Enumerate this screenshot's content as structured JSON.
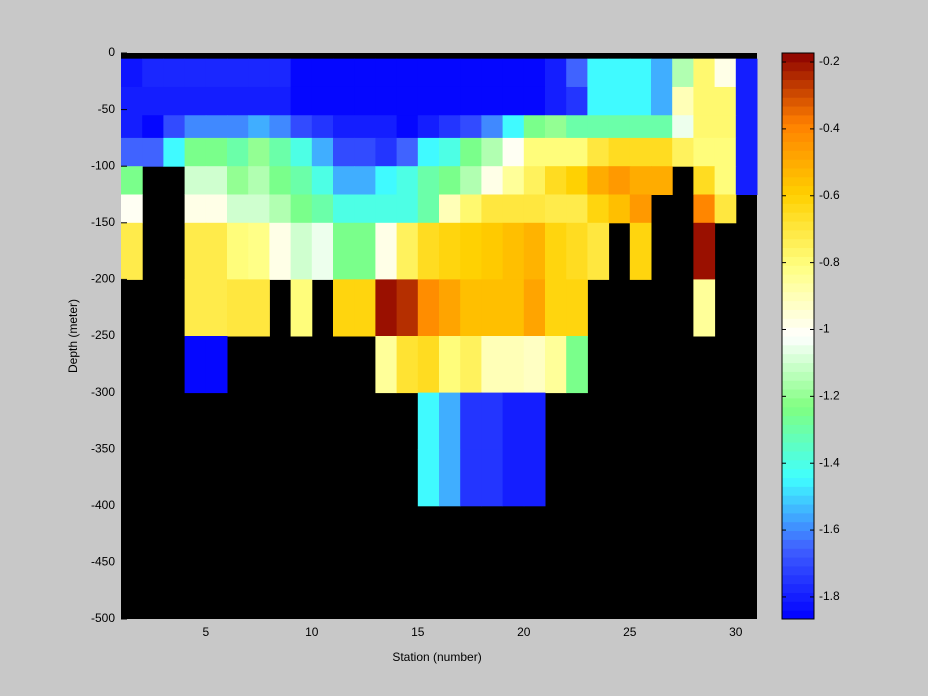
{
  "chart_data": {
    "type": "heatmap",
    "xlabel": "Station (number)",
    "ylabel": "Depth (meter)",
    "x_edges": [
      1,
      2,
      3,
      4,
      5,
      6,
      7,
      8,
      9,
      10,
      11,
      12,
      13,
      14,
      15,
      16,
      17,
      18,
      19,
      20,
      21,
      22,
      23,
      24,
      25,
      26,
      27,
      28,
      29,
      30,
      31
    ],
    "y_edges": [
      -5,
      -30,
      -55,
      -75,
      -100,
      -125,
      -150,
      -200,
      -250,
      -300,
      -350,
      -400
    ],
    "values": [
      [
        -1.82,
        -1.78,
        -1.78,
        -1.78,
        -1.78,
        -1.78,
        -1.78,
        -1.78,
        -1.85,
        -1.85,
        -1.85,
        -1.85,
        -1.85,
        -1.85,
        -1.85,
        -1.85,
        -1.85,
        -1.85,
        -1.85,
        -1.85,
        -1.8,
        -1.65,
        -1.45,
        -1.45,
        -1.45,
        -1.55,
        -1.15,
        -0.78,
        -0.98,
        -1.8
      ],
      [
        -1.8,
        -1.8,
        -1.8,
        -1.8,
        -1.8,
        -1.8,
        -1.8,
        -1.8,
        -1.85,
        -1.85,
        -1.85,
        -1.85,
        -1.85,
        -1.85,
        -1.85,
        -1.85,
        -1.85,
        -1.85,
        -1.85,
        -1.85,
        -1.8,
        -1.75,
        -1.45,
        -1.45,
        -1.45,
        -1.55,
        -0.9,
        -0.78,
        -0.78,
        -1.8
      ],
      [
        -1.8,
        -1.85,
        -1.7,
        -1.6,
        -1.6,
        -1.6,
        -1.55,
        -1.6,
        -1.7,
        -1.75,
        -1.8,
        -1.8,
        -1.8,
        -1.85,
        -1.8,
        -1.75,
        -1.7,
        -1.6,
        -1.45,
        -1.25,
        -1.2,
        -1.3,
        -1.3,
        -1.3,
        -1.3,
        -1.3,
        -1.05,
        -0.78,
        -0.78,
        -1.8
      ],
      [
        -1.65,
        -1.65,
        -1.45,
        -1.25,
        -1.25,
        -1.3,
        -1.2,
        -1.3,
        -1.4,
        -1.55,
        -1.7,
        -1.7,
        -1.75,
        -1.65,
        -1.45,
        -1.4,
        -1.25,
        -1.15,
        -1.0,
        -0.8,
        -0.8,
        -0.8,
        -0.7,
        -0.65,
        -0.65,
        -0.65,
        -0.75,
        -0.8,
        -0.8,
        -1.8
      ],
      [
        -1.25,
        null,
        null,
        -1.1,
        -1.1,
        -1.2,
        -1.15,
        -1.25,
        -1.3,
        -1.4,
        -1.55,
        -1.55,
        -1.45,
        -1.4,
        -1.3,
        -1.25,
        -1.15,
        -0.98,
        -0.85,
        -0.75,
        -0.65,
        -0.6,
        -0.5,
        -0.45,
        -0.5,
        -0.5,
        null,
        -0.65,
        -0.8,
        -1.8
      ],
      [
        -1.0,
        null,
        null,
        -0.98,
        -0.98,
        -1.1,
        -1.1,
        -1.15,
        -1.25,
        -1.3,
        -1.4,
        -1.4,
        -1.4,
        -1.4,
        -1.3,
        -0.9,
        -0.78,
        -0.7,
        -0.7,
        -0.7,
        -0.72,
        -0.72,
        -0.62,
        -0.55,
        -0.45,
        null,
        null,
        -0.4,
        -0.7,
        null
      ],
      [
        -0.72,
        null,
        null,
        -0.72,
        -0.72,
        -0.8,
        -0.82,
        -0.98,
        -1.1,
        -1.05,
        -1.25,
        -1.25,
        -0.98,
        -0.75,
        -0.65,
        -0.62,
        -0.6,
        -0.58,
        -0.55,
        -0.52,
        -0.62,
        -0.65,
        -0.7,
        null,
        -0.62,
        null,
        null,
        -0.2,
        null,
        null
      ],
      [
        null,
        null,
        null,
        -0.72,
        -0.72,
        -0.7,
        -0.7,
        null,
        -0.8,
        null,
        -0.62,
        -0.62,
        -0.2,
        -0.25,
        -0.42,
        -0.48,
        -0.55,
        -0.55,
        -0.55,
        -0.48,
        -0.62,
        -0.62,
        null,
        null,
        null,
        null,
        null,
        -0.85,
        null,
        null
      ],
      [
        null,
        null,
        null,
        -1.85,
        -1.85,
        null,
        null,
        null,
        null,
        null,
        null,
        null,
        -0.85,
        -0.68,
        -0.65,
        -0.8,
        -0.75,
        -0.9,
        -0.9,
        -0.92,
        -0.85,
        -1.25,
        null,
        null,
        null,
        null,
        null,
        null,
        null,
        null
      ],
      [
        null,
        null,
        null,
        null,
        null,
        null,
        null,
        null,
        null,
        null,
        null,
        null,
        null,
        null,
        -1.45,
        -1.55,
        -1.75,
        -1.75,
        -1.8,
        -1.8,
        null,
        null,
        null,
        null,
        null,
        null,
        null,
        null,
        null,
        null
      ],
      [
        null,
        null,
        null,
        null,
        null,
        null,
        null,
        null,
        null,
        null,
        null,
        null,
        null,
        null,
        -1.45,
        -1.55,
        -1.75,
        -1.75,
        -1.8,
        -1.8,
        null,
        null,
        null,
        null,
        null,
        null,
        null,
        null,
        null,
        null
      ]
    ],
    "xlim": [
      1,
      31
    ],
    "xticks": [
      5,
      10,
      15,
      20,
      25,
      30
    ],
    "ylim": [
      -500,
      0
    ],
    "yticks": [
      0,
      -50,
      -100,
      -150,
      -200,
      -250,
      -300,
      -350,
      -400,
      -450,
      -500
    ],
    "clim": [
      -1.866,
      -0.173
    ],
    "cticks": [
      -0.2,
      -0.4,
      -0.6,
      -0.8,
      -1,
      -1.2,
      -1.4,
      -1.6,
      -1.8
    ],
    "colormap": [
      "#0000ff",
      "#4060ff",
      "#40ffff",
      "#80ff80",
      "#ffffff",
      "#ffff80",
      "#ffd000",
      "#ff8000",
      "#8b0000"
    ],
    "nan_color": "#000000"
  }
}
